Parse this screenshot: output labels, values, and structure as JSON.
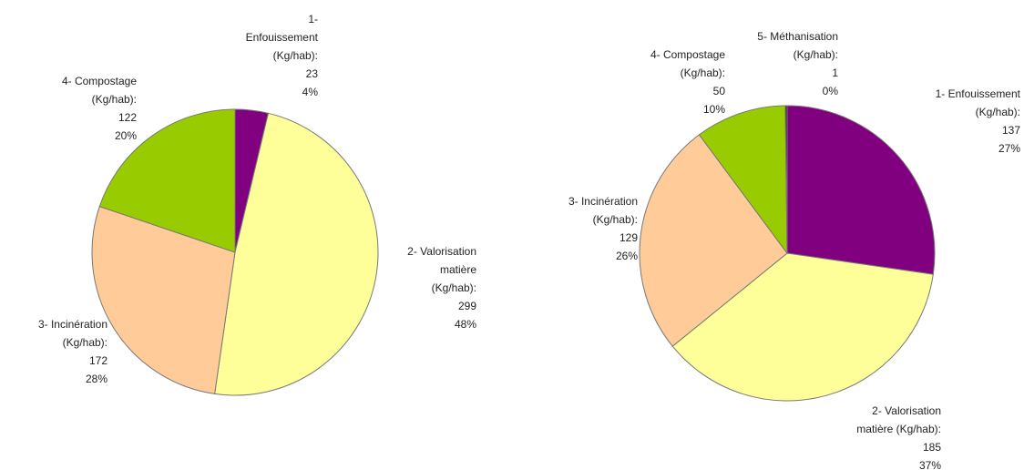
{
  "chart_data": [
    {
      "type": "pie",
      "categories": [
        [
          "1-",
          "Enfouissement",
          "(Kg/hab):"
        ],
        [
          "2- Valorisation",
          "matière",
          "(Kg/hab):"
        ],
        [
          "3- Incinération",
          "(Kg/hab):"
        ],
        [
          "4- Compostage",
          "(Kg/hab):"
        ]
      ],
      "values": [
        23,
        299,
        172,
        122
      ],
      "value_labels": [
        "4%",
        "48%",
        "28%",
        "20%"
      ],
      "colors": [
        "#800080",
        "#ffff99",
        "#ffcc99",
        "#99cc00"
      ]
    },
    {
      "type": "pie",
      "categories": [
        [
          "1- Enfouissement",
          "(Kg/hab):"
        ],
        [
          "2- Valorisation",
          "matière (Kg/hab):"
        ],
        [
          "3- Incinération",
          "(Kg/hab):"
        ],
        [
          "4- Compostage",
          "(Kg/hab):"
        ],
        [
          "5- Méthanisation",
          "(Kg/hab):"
        ]
      ],
      "values": [
        137,
        185,
        129,
        50,
        1
      ],
      "value_labels": [
        "27%",
        "37%",
        "26%",
        "10%",
        "0%"
      ],
      "colors": [
        "#800080",
        "#ffff99",
        "#ffcc99",
        "#99cc00",
        "#1a3300"
      ]
    }
  ]
}
